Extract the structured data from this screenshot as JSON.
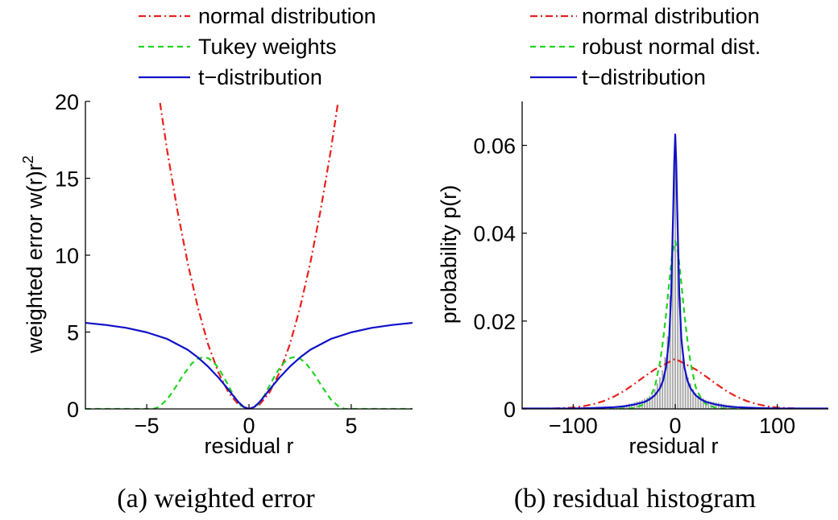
{
  "chart_data": [
    {
      "type": "line",
      "caption": "(a) weighted error",
      "xlabel": "residual r",
      "ylabel": "weighted error w(r)r",
      "ylabel_sup": "2",
      "xlim": [
        -8,
        8
      ],
      "ylim": [
        0,
        20
      ],
      "x_ticks": [
        -5,
        0,
        5
      ],
      "x_tick_labels": [
        "−5",
        "0",
        "5"
      ],
      "y_ticks": [
        0,
        5,
        10,
        15,
        20
      ],
      "y_tick_labels": [
        "0",
        "5",
        "10",
        "15",
        "20"
      ],
      "grid": false,
      "legend_position": "top",
      "series": [
        {
          "name": "normal distribution",
          "color": "#e8201c",
          "style": "dashdot",
          "x": [
            -4.35,
            -4.0,
            -3.5,
            -3.0,
            -2.5,
            -2.0,
            -1.5,
            -1.0,
            -0.5,
            0.0,
            0.5,
            1.0,
            1.5,
            2.0,
            2.5,
            3.0,
            3.5,
            4.0,
            4.35
          ],
          "y": [
            19.9,
            16.8,
            12.9,
            9.5,
            6.6,
            4.2,
            2.38,
            1.06,
            0.26,
            0.0,
            0.26,
            1.06,
            2.38,
            4.2,
            6.6,
            9.5,
            12.9,
            16.8,
            19.9
          ]
        },
        {
          "name": "Tukey weights",
          "color": "#22d322",
          "style": "dashed",
          "x": [
            -8.0,
            -7.0,
            -6.0,
            -5.0,
            -4.685,
            -4.4,
            -4.0,
            -3.6,
            -3.2,
            -2.8,
            -2.5,
            -2.2,
            -2.0,
            -1.8,
            -1.6,
            -1.4,
            -1.2,
            -1.0,
            -0.8,
            -0.6,
            -0.4,
            -0.2,
            0.0,
            0.2,
            0.4,
            0.6,
            0.8,
            1.0,
            1.2,
            1.4,
            1.6,
            1.8,
            2.0,
            2.2,
            2.5,
            2.8,
            3.2,
            3.6,
            4.0,
            4.4,
            4.685,
            5.0,
            6.0,
            7.0,
            8.0
          ],
          "y": [
            0.0,
            0.0,
            0.0,
            0.0,
            0.0,
            0.14,
            0.62,
            1.39,
            2.24,
            2.95,
            3.27,
            3.37,
            3.3,
            3.12,
            2.84,
            2.45,
            2.0,
            1.5,
            1.0,
            0.55,
            0.24,
            0.06,
            0.0,
            0.06,
            0.24,
            0.55,
            1.0,
            1.5,
            2.0,
            2.45,
            2.84,
            3.12,
            3.3,
            3.37,
            3.27,
            2.95,
            2.24,
            1.39,
            0.62,
            0.14,
            0.0,
            0.0,
            0.0,
            0.0,
            0.0
          ]
        },
        {
          "name": "t−distribution",
          "color": "#1010c8",
          "style": "solid",
          "x": [
            -8.0,
            -7.0,
            -6.0,
            -5.0,
            -4.0,
            -3.0,
            -2.5,
            -2.0,
            -1.5,
            -1.0,
            -0.75,
            -0.5,
            -0.25,
            0.0,
            0.25,
            0.5,
            0.75,
            1.0,
            1.5,
            2.0,
            2.5,
            3.0,
            4.0,
            5.0,
            6.0,
            7.0,
            8.0
          ],
          "y": [
            5.6,
            5.46,
            5.27,
            4.98,
            4.55,
            3.85,
            3.35,
            2.75,
            2.05,
            1.25,
            0.82,
            0.42,
            0.12,
            0.0,
            0.12,
            0.42,
            0.82,
            1.25,
            2.05,
            2.75,
            3.35,
            3.85,
            4.55,
            4.98,
            5.27,
            5.46,
            5.6
          ]
        }
      ]
    },
    {
      "type": "bar+line",
      "caption": "(b) residual histogram",
      "xlabel": "residual r",
      "ylabel": "probability p(r)",
      "xlim": [
        -150,
        150
      ],
      "ylim": [
        0,
        0.07
      ],
      "x_ticks": [
        -100,
        0,
        100
      ],
      "x_tick_labels": [
        "−100",
        "0",
        "100"
      ],
      "y_ticks": [
        0,
        0.02,
        0.04,
        0.06
      ],
      "y_tick_labels": [
        "0",
        "0.02",
        "0.04",
        "0.06"
      ],
      "grid": false,
      "legend_position": "top",
      "histogram": {
        "color": "#a8a8a8",
        "bin_width": 2.5,
        "x": [
          -60,
          -57.5,
          -55,
          -52.5,
          -50,
          -47.5,
          -45,
          -42.5,
          -40,
          -37.5,
          -35,
          -32.5,
          -30,
          -27.5,
          -25,
          -22.5,
          -20,
          -17.5,
          -15,
          -12.5,
          -10,
          -7.5,
          -5,
          -2.5,
          0,
          2.5,
          5,
          7.5,
          10,
          12.5,
          15,
          17.5,
          20,
          22.5,
          25,
          27.5,
          30,
          32.5,
          35,
          37.5,
          40,
          42.5,
          45,
          47.5,
          50,
          52.5,
          55,
          57.5,
          60
        ],
        "values": [
          0.0005,
          0.0006,
          0.0007,
          0.0008,
          0.0009,
          0.001,
          0.0012,
          0.0013,
          0.0015,
          0.0017,
          0.0018,
          0.002,
          0.0023,
          0.0026,
          0.003,
          0.0033,
          0.0045,
          0.0058,
          0.0072,
          0.0088,
          0.0118,
          0.0165,
          0.0258,
          0.0398,
          0.061,
          0.0392,
          0.0255,
          0.0115,
          0.0082,
          0.0072,
          0.0058,
          0.0045,
          0.0036,
          0.003,
          0.0027,
          0.0024,
          0.0021,
          0.0019,
          0.0017,
          0.0016,
          0.0015,
          0.0014,
          0.0012,
          0.0011,
          0.001,
          0.0009,
          0.0008,
          0.0007,
          0.0006
        ]
      },
      "series": [
        {
          "name": "normal distribution",
          "color": "#e8201c",
          "style": "dashdot",
          "x": [
            -150,
            -120,
            -100,
            -90,
            -80,
            -70,
            -60,
            -50,
            -40,
            -30,
            -20,
            -10,
            0,
            10,
            20,
            30,
            40,
            50,
            60,
            70,
            80,
            90,
            100,
            120,
            150
          ],
          "y": [
            1e-05,
            0.0001,
            0.0003,
            0.0006,
            0.0011,
            0.0018,
            0.0028,
            0.0041,
            0.0057,
            0.0074,
            0.009,
            0.0102,
            0.0114,
            0.0102,
            0.009,
            0.0074,
            0.0057,
            0.0041,
            0.0028,
            0.0018,
            0.0011,
            0.0006,
            0.0003,
            0.0001,
            1e-05
          ]
        },
        {
          "name": "robust normal dist.",
          "color": "#22d322",
          "style": "dashed",
          "x": [
            -150,
            -60,
            -40,
            -30,
            -25,
            -20,
            -15,
            -12,
            -9,
            -6,
            -3,
            0,
            3,
            6,
            9,
            12,
            15,
            20,
            25,
            30,
            40,
            60,
            150
          ],
          "y": [
            0.0,
            0.0,
            0.0002,
            0.0011,
            0.0025,
            0.005,
            0.0105,
            0.0155,
            0.0215,
            0.0285,
            0.0352,
            0.0382,
            0.0352,
            0.0285,
            0.0215,
            0.0155,
            0.0105,
            0.005,
            0.0025,
            0.0011,
            0.0002,
            0.0,
            0.0
          ]
        },
        {
          "name": "t−distribution",
          "color": "#1010c8",
          "style": "solid",
          "x": [
            -150,
            -100,
            -80,
            -60,
            -50,
            -40,
            -30,
            -25,
            -20,
            -15,
            -12,
            -9,
            -6,
            -4,
            -2,
            -1,
            0,
            1,
            2,
            4,
            6,
            9,
            12,
            15,
            20,
            25,
            30,
            40,
            50,
            60,
            80,
            100,
            150
          ],
          "y": [
            0.0001,
            0.0001,
            0.0002,
            0.0004,
            0.0006,
            0.001,
            0.0016,
            0.0022,
            0.0031,
            0.0047,
            0.0064,
            0.0095,
            0.016,
            0.026,
            0.045,
            0.056,
            0.0625,
            0.056,
            0.045,
            0.026,
            0.016,
            0.0095,
            0.0064,
            0.0047,
            0.0031,
            0.0022,
            0.0016,
            0.001,
            0.0006,
            0.0004,
            0.0002,
            0.0001,
            0.0001
          ]
        }
      ]
    }
  ]
}
